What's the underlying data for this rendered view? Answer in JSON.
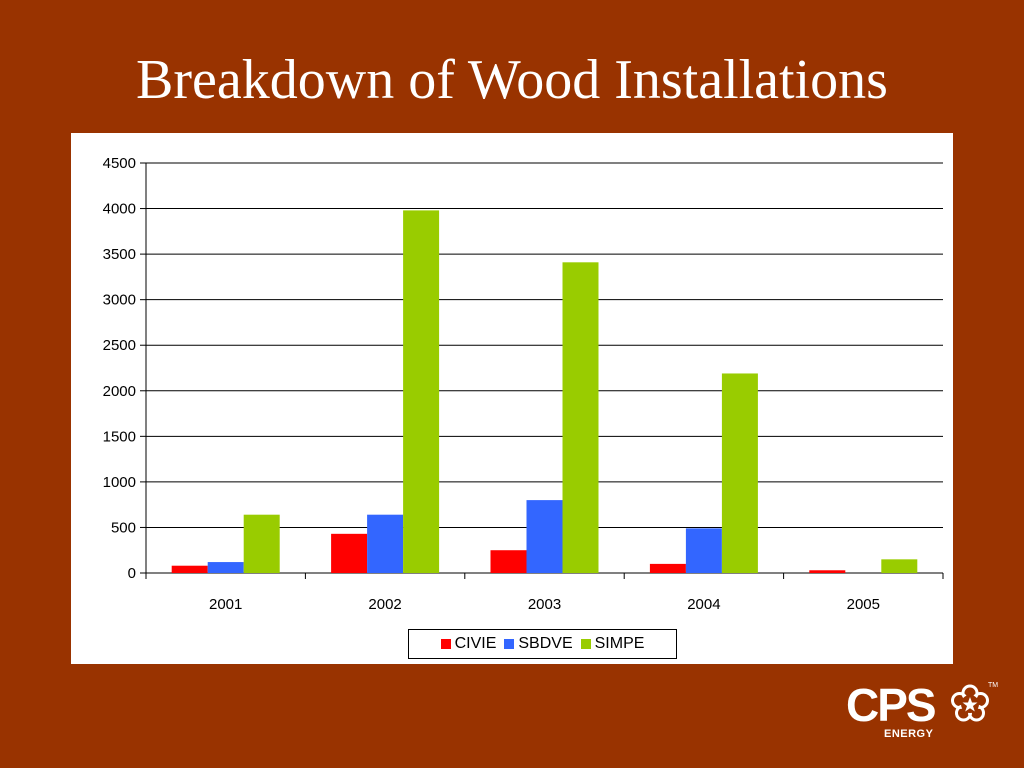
{
  "slide": {
    "title": "Breakdown of Wood Installations"
  },
  "logo": {
    "text": "CPS",
    "subtext": "ENERGY",
    "trademark": "TM",
    "icon": "star-flower-icon"
  },
  "colors": {
    "background": "#993300",
    "CIVIE": "#ff0000",
    "SBDVE": "#3366ff",
    "SIMPE": "#99cc00"
  },
  "chart_data": {
    "type": "bar",
    "title": "",
    "xlabel": "",
    "ylabel": "",
    "categories": [
      "2001",
      "2002",
      "2003",
      "2004",
      "2005"
    ],
    "series": [
      {
        "name": "CIVIE",
        "values": [
          80,
          430,
          250,
          100,
          30
        ]
      },
      {
        "name": "SBDVE",
        "values": [
          120,
          640,
          800,
          490,
          0
        ]
      },
      {
        "name": "SIMPE",
        "values": [
          640,
          3980,
          3410,
          2190,
          150
        ]
      }
    ],
    "ylim": [
      0,
      4500
    ],
    "yticks": [
      0,
      500,
      1000,
      1500,
      2000,
      2500,
      3000,
      3500,
      4000,
      4500
    ],
    "grid": true,
    "legend_position": "bottom"
  }
}
